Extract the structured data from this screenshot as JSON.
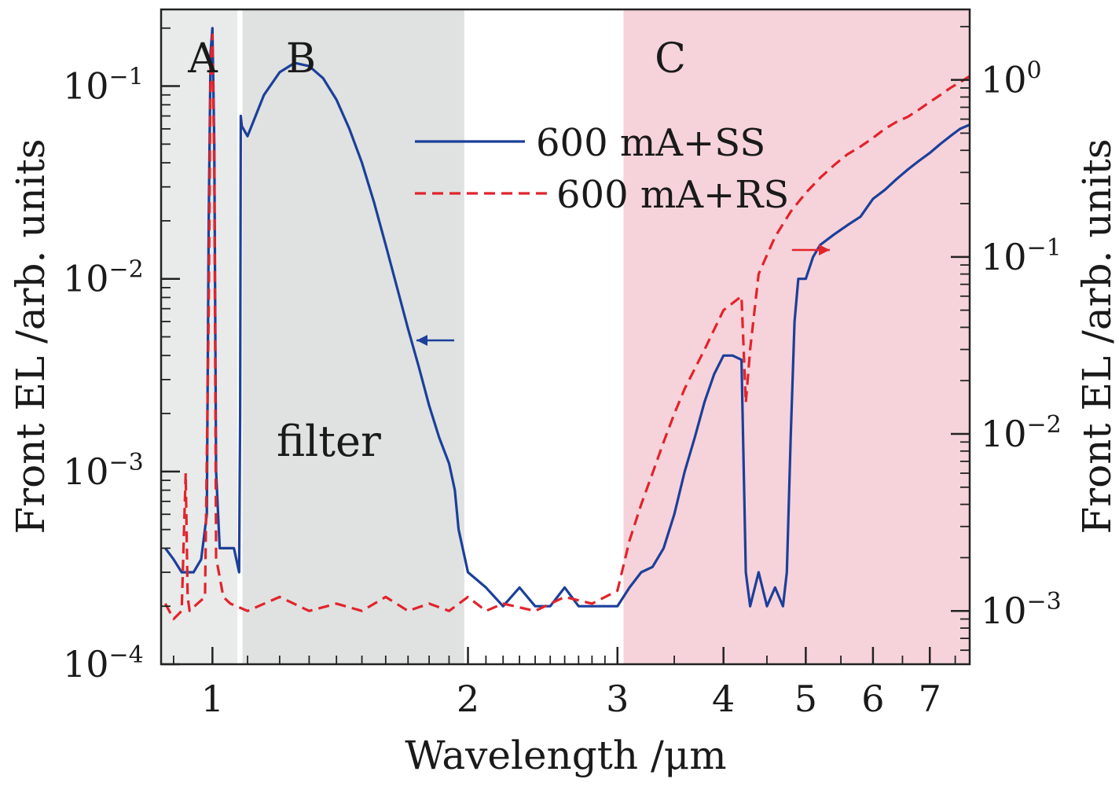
{
  "chart_data": {
    "type": "line",
    "xlabel": "Wavelength /μm",
    "ylabel_left": "Front EL /arb. units",
    "ylabel_right": "Front EL /arb. units",
    "x_scale": "log",
    "y_scale_left": "log",
    "y_scale_right": "log",
    "xlim": [
      0.87,
      7.8
    ],
    "ylim_left": [
      0.0001,
      0.25
    ],
    "ylim_right": [
      0.0005,
      2.5
    ],
    "x_ticks": [
      {
        "value": 1,
        "label": "1"
      },
      {
        "value": 2,
        "label": "2"
      },
      {
        "value": 3,
        "label": "3"
      },
      {
        "value": 4,
        "label": "4"
      },
      {
        "value": 5,
        "label": "5"
      },
      {
        "value": 6,
        "label": "6"
      },
      {
        "value": 7,
        "label": "7"
      }
    ],
    "y_ticks_left": [
      {
        "value": 0.0001,
        "base": "10",
        "exp": "−4"
      },
      {
        "value": 0.001,
        "base": "10",
        "exp": "−3"
      },
      {
        "value": 0.01,
        "base": "10",
        "exp": "−2"
      },
      {
        "value": 0.1,
        "base": "10",
        "exp": "−1"
      }
    ],
    "y_ticks_right": [
      {
        "value": 0.001,
        "base": "10",
        "exp": "−3"
      },
      {
        "value": 0.01,
        "base": "10",
        "exp": "−2"
      },
      {
        "value": 0.1,
        "base": "10",
        "exp": "−1"
      },
      {
        "value": 1,
        "base": "10",
        "exp": "0"
      }
    ],
    "regions": [
      {
        "label": "A",
        "x": [
          0.87,
          1.07
        ],
        "color": "#e9eaea"
      },
      {
        "label": "B",
        "x": [
          1.085,
          1.98
        ],
        "color": "#dfe2e1"
      },
      {
        "label": "C",
        "x": [
          3.05,
          7.8
        ],
        "color": "#f6d3da"
      }
    ],
    "annotations": [
      {
        "text": "filter",
        "x": 1.09,
        "y_left": 0.0011
      }
    ],
    "series": [
      {
        "name": "600 mA+SS",
        "axis": "left",
        "color": "#1c3f9a",
        "style": "solid",
        "x": [
          0.88,
          0.9,
          0.92,
          0.95,
          0.97,
          0.985,
          0.99,
          0.995,
          1.0,
          1.005,
          1.01,
          1.02,
          1.04,
          1.06,
          1.075,
          1.078,
          1.08,
          1.083,
          1.1,
          1.15,
          1.2,
          1.25,
          1.3,
          1.35,
          1.4,
          1.45,
          1.5,
          1.55,
          1.6,
          1.65,
          1.7,
          1.75,
          1.8,
          1.85,
          1.9,
          1.93,
          1.95,
          2.0,
          2.1,
          2.2,
          2.3,
          2.4,
          2.5,
          2.6,
          2.7,
          2.8,
          2.9,
          3.0,
          3.1,
          3.2,
          3.3,
          3.4,
          3.5,
          3.6,
          3.7,
          3.8,
          3.9,
          4.0,
          4.1,
          4.2,
          4.25,
          4.3,
          4.4,
          4.5,
          4.6,
          4.7,
          4.75,
          4.8,
          4.85,
          4.9,
          5.0,
          5.1,
          5.2,
          5.4,
          5.6,
          5.8,
          6.0,
          6.2,
          6.4,
          6.6,
          6.8,
          7.0,
          7.2,
          7.4,
          7.6,
          7.8
        ],
        "y": [
          0.0004,
          0.00035,
          0.0003,
          0.0003,
          0.00035,
          0.0006,
          0.02,
          0.15,
          0.2,
          0.05,
          0.001,
          0.0004,
          0.0004,
          0.0004,
          0.0003,
          0.002,
          0.07,
          0.062,
          0.055,
          0.09,
          0.118,
          0.132,
          0.127,
          0.11,
          0.085,
          0.06,
          0.04,
          0.025,
          0.015,
          0.009,
          0.0055,
          0.0035,
          0.0022,
          0.0015,
          0.0011,
          0.0008,
          0.0005,
          0.0003,
          0.00025,
          0.0002,
          0.00025,
          0.0002,
          0.0002,
          0.00025,
          0.0002,
          0.0002,
          0.0002,
          0.0002,
          0.00025,
          0.0003,
          0.00032,
          0.0004,
          0.0006,
          0.001,
          0.0015,
          0.0023,
          0.0032,
          0.004,
          0.004,
          0.0038,
          0.0003,
          0.0002,
          0.0003,
          0.0002,
          0.00025,
          0.0002,
          0.0003,
          0.0015,
          0.006,
          0.01,
          0.01,
          0.013,
          0.015,
          0.017,
          0.019,
          0.021,
          0.026,
          0.029,
          0.033,
          0.037,
          0.041,
          0.045,
          0.05,
          0.055,
          0.06,
          0.063
        ]
      },
      {
        "name": "600 mA+RS",
        "axis": "right",
        "color": "#e2232b",
        "style": "dashed",
        "x": [
          0.88,
          0.9,
          0.92,
          0.93,
          0.935,
          0.94,
          0.96,
          0.98,
          0.99,
          0.995,
          1.0,
          1.005,
          1.01,
          1.03,
          1.05,
          1.1,
          1.2,
          1.3,
          1.4,
          1.5,
          1.6,
          1.7,
          1.8,
          1.9,
          2.0,
          2.1,
          2.2,
          2.4,
          2.6,
          2.8,
          3.0,
          3.1,
          3.2,
          3.3,
          3.4,
          3.5,
          3.6,
          3.8,
          4.0,
          4.2,
          4.25,
          4.3,
          4.4,
          4.6,
          4.8,
          5.0,
          5.2,
          5.4,
          5.6,
          5.8,
          6.0,
          6.2,
          6.4,
          6.6,
          6.8,
          7.0,
          7.2,
          7.4,
          7.6,
          7.8
        ],
        "y": [
          0.0011,
          0.0009,
          0.001,
          0.006,
          0.0012,
          0.001,
          0.0011,
          0.0012,
          0.05,
          1.2,
          1.8,
          0.3,
          0.002,
          0.0012,
          0.0011,
          0.001,
          0.0012,
          0.001,
          0.0011,
          0.001,
          0.0012,
          0.001,
          0.0011,
          0.001,
          0.0012,
          0.001,
          0.0011,
          0.001,
          0.0012,
          0.0011,
          0.0013,
          0.0025,
          0.004,
          0.006,
          0.009,
          0.013,
          0.018,
          0.03,
          0.05,
          0.06,
          0.015,
          0.03,
          0.08,
          0.13,
          0.18,
          0.23,
          0.28,
          0.33,
          0.38,
          0.42,
          0.47,
          0.53,
          0.58,
          0.62,
          0.68,
          0.75,
          0.82,
          0.9,
          0.97,
          1.05
        ]
      }
    ],
    "legend": {
      "position": "top-center"
    },
    "axis_arrows": [
      {
        "series": "600 mA+SS",
        "direction": "left"
      },
      {
        "series": "600 mA+RS",
        "direction": "right"
      }
    ]
  }
}
